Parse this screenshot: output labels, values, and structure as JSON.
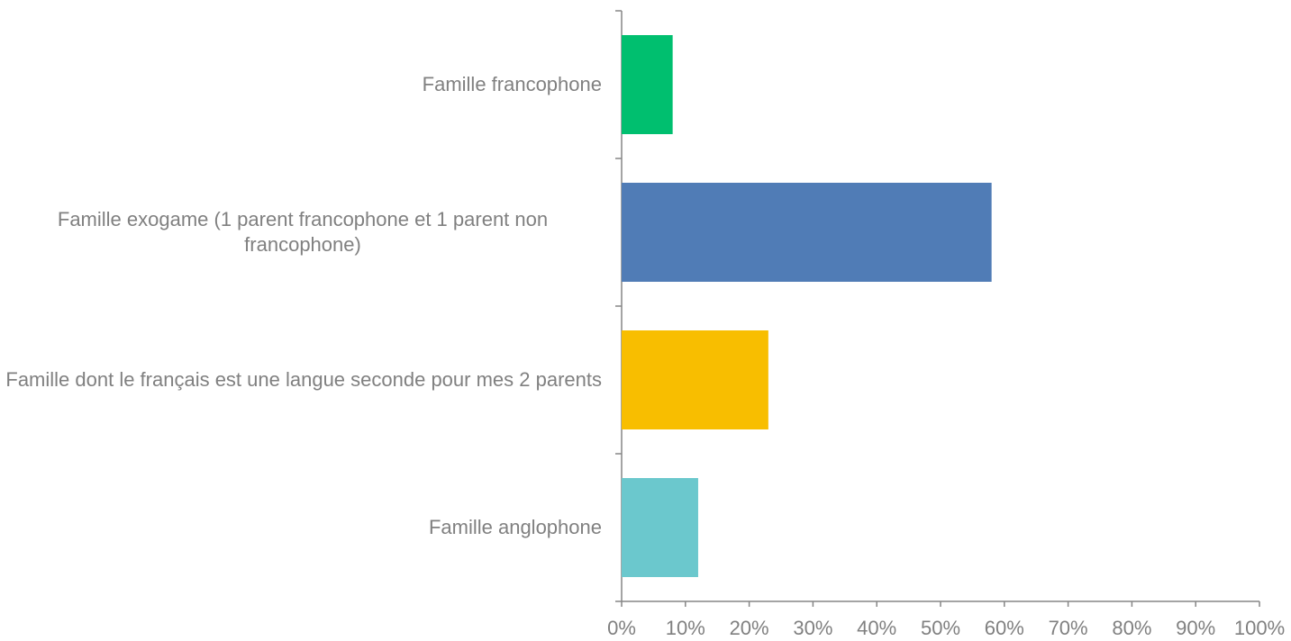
{
  "chart_data": {
    "type": "barh",
    "categories": [
      "Famille francophone",
      "Famille exogame (1 parent francophone et 1 parent non francophone)",
      "Famille dont le français est une langue seconde pour mes 2 parents",
      "Famille anglophone"
    ],
    "values": [
      8,
      58,
      23,
      12
    ],
    "colors": [
      "#00bf6f",
      "#507cb6",
      "#f8be00",
      "#6bc8cd"
    ],
    "xlim": [
      0,
      100
    ],
    "xticks": [
      {
        "value": 0,
        "label": "0%"
      },
      {
        "value": 10,
        "label": "10%"
      },
      {
        "value": 20,
        "label": "20%"
      },
      {
        "value": 30,
        "label": "30%"
      },
      {
        "value": 40,
        "label": "40%"
      },
      {
        "value": 50,
        "label": "50%"
      },
      {
        "value": 60,
        "label": "60%"
      },
      {
        "value": 70,
        "label": "70%"
      },
      {
        "value": 80,
        "label": "80%"
      },
      {
        "value": 90,
        "label": "90%"
      },
      {
        "value": 100,
        "label": "100%"
      }
    ],
    "grid": false
  }
}
